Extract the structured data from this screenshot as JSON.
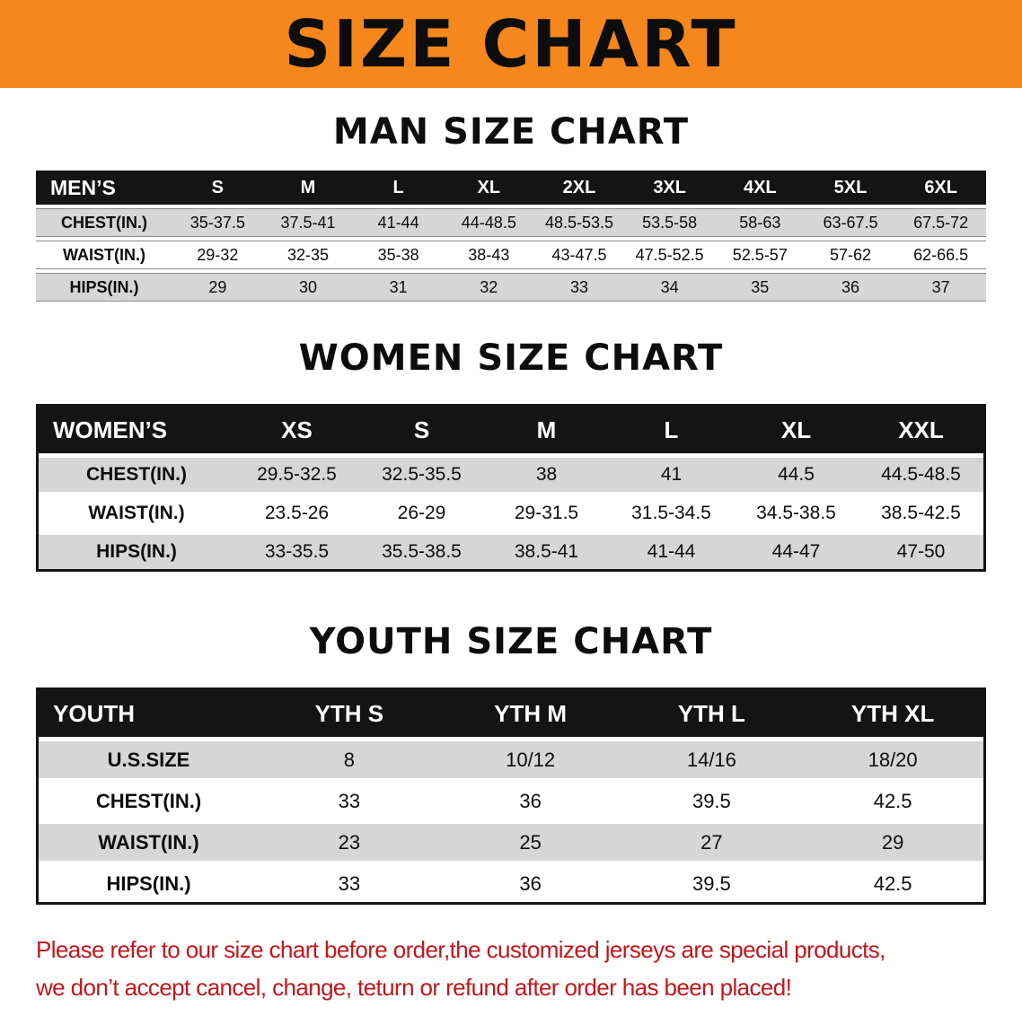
{
  "banner": {
    "title": "SIZE CHART"
  },
  "men": {
    "heading": "MAN SIZE CHART",
    "table": {
      "header": [
        "MEN’S",
        "S",
        "M",
        "L",
        "XL",
        "2XL",
        "3XL",
        "4XL",
        "5XL",
        "6XL"
      ],
      "rows": [
        [
          "CHEST(IN.)",
          "35-37.5",
          "37.5-41",
          "41-44",
          "44-48.5",
          "48.5-53.5",
          "53.5-58",
          "58-63",
          "63-67.5",
          "67.5-72"
        ],
        [
          "WAIST(IN.)",
          "29-32",
          "32-35",
          "35-38",
          "38-43",
          "43-47.5",
          "47.5-52.5",
          "52.5-57",
          "57-62",
          "62-66.5"
        ],
        [
          "HIPS(IN.)",
          "29",
          "30",
          "31",
          "32",
          "33",
          "34",
          "35",
          "36",
          "37"
        ]
      ]
    }
  },
  "women": {
    "heading": "WOMEN SIZE CHART",
    "table": {
      "header": [
        "WOMEN’S",
        "XS",
        "S",
        "M",
        "L",
        "XL",
        "XXL"
      ],
      "rows": [
        [
          "CHEST(IN.)",
          "29.5-32.5",
          "32.5-35.5",
          "38",
          "41",
          "44.5",
          "44.5-48.5"
        ],
        [
          "WAIST(IN.)",
          "23.5-26",
          "26-29",
          "29-31.5",
          "31.5-34.5",
          "34.5-38.5",
          "38.5-42.5"
        ],
        [
          "HIPS(IN.)",
          "33-35.5",
          "35.5-38.5",
          "38.5-41",
          "41-44",
          "44-47",
          "47-50"
        ]
      ]
    }
  },
  "youth": {
    "heading": "YOUTH SIZE CHART",
    "table": {
      "header": [
        "YOUTH",
        "YTH S",
        "YTH M",
        "YTH L",
        "YTH XL"
      ],
      "rows": [
        [
          "U.S.SIZE",
          "8",
          "10/12",
          "14/16",
          "18/20"
        ],
        [
          "CHEST(IN.)",
          "33",
          "36",
          "39.5",
          "42.5"
        ],
        [
          "WAIST(IN.)",
          "23",
          "25",
          "27",
          "29"
        ],
        [
          "HIPS(IN.)",
          "33",
          "36",
          "39.5",
          "42.5"
        ]
      ]
    }
  },
  "footer": {
    "line1": "Please refer to our size chart before order,the customized jerseys are special products,",
    "line2": "we don’t accept cancel, change, teturn or refund after order has been placed!"
  },
  "colors": {
    "banner_bg": "#F6871D",
    "header_bg": "#141414",
    "row_shade": "#D6D6D6",
    "footer_text": "#C3161C"
  }
}
